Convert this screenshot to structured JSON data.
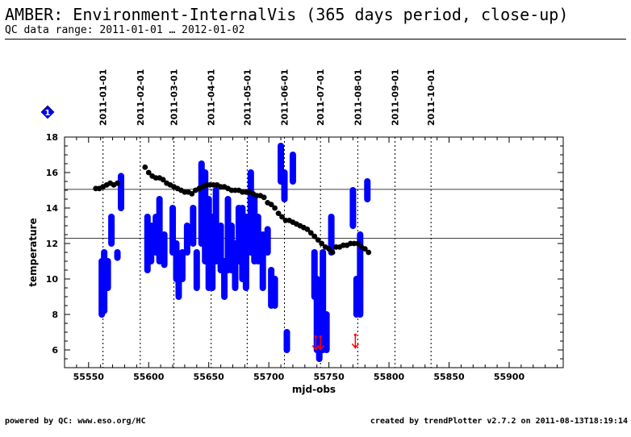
{
  "header": {
    "title": "AMBER: Environment-InternalVis (365 days period, close-up)",
    "subtitle": "QC data range: 2011-01-01 … 2012-01-02"
  },
  "footer": {
    "left": "powered by QC: www.eso.org/HC",
    "right": "created by trendPlotter v2.7.2 on 2011-08-13T18:19:14"
  },
  "marker_label": "1",
  "colors": {
    "series_temp": "#0000ff",
    "series_avg": "#000000",
    "outlier": "#ff0000",
    "marker": "#0000ff"
  },
  "chart_data": {
    "type": "scatter",
    "xlabel": "mjd-obs",
    "ylabel": "temperature",
    "xlim": [
      55530,
      55945
    ],
    "ylim": [
      5,
      18
    ],
    "x_ticks": [
      55550,
      55600,
      55650,
      55700,
      55750,
      55800,
      55850,
      55900
    ],
    "y_ticks": [
      6,
      8,
      10,
      12,
      14,
      16,
      18
    ],
    "date_markers": [
      {
        "label": "2011-01-01",
        "x": 55562
      },
      {
        "label": "2011-02-01",
        "x": 55593
      },
      {
        "label": "2011-03-01",
        "x": 55621
      },
      {
        "label": "2011-04-01",
        "x": 55652
      },
      {
        "label": "2011-05-01",
        "x": 55682
      },
      {
        "label": "2011-06-01",
        "x": 55713
      },
      {
        "label": "2011-07-01",
        "x": 55743
      },
      {
        "label": "2011-08-01",
        "x": 55774
      },
      {
        "label": "2011-09-01",
        "x": 55805
      },
      {
        "label": "2011-10-01",
        "x": 55835
      }
    ],
    "reference_lines": [
      15.05,
      12.3
    ],
    "series": [
      {
        "type": "range",
        "clusters": [
          {
            "x": 55561,
            "lo": 8.0,
            "hi": 11.0
          },
          {
            "x": 55563,
            "lo": 8.2,
            "hi": 11.5
          },
          {
            "x": 55566,
            "lo": 9.5,
            "hi": 11.0
          },
          {
            "x": 55569,
            "lo": 12.0,
            "hi": 13.5
          },
          {
            "x": 55574,
            "lo": 11.2,
            "hi": 11.5
          },
          {
            "x": 55577,
            "lo": 14.0,
            "hi": 15.8
          },
          {
            "x": 55599,
            "lo": 10.5,
            "hi": 13.5
          },
          {
            "x": 55602,
            "lo": 11.0,
            "hi": 13.0
          },
          {
            "x": 55606,
            "lo": 11.5,
            "hi": 13.5
          },
          {
            "x": 55609,
            "lo": 11.0,
            "hi": 14.5
          },
          {
            "x": 55613,
            "lo": 10.8,
            "hi": 12.5
          },
          {
            "x": 55620,
            "lo": 11.5,
            "hi": 14.0
          },
          {
            "x": 55623,
            "lo": 10.0,
            "hi": 12.0
          },
          {
            "x": 55625,
            "lo": 9.0,
            "hi": 11.0
          },
          {
            "x": 55628,
            "lo": 10.0,
            "hi": 11.5
          },
          {
            "x": 55632,
            "lo": 11.5,
            "hi": 13.0
          },
          {
            "x": 55637,
            "lo": 12.0,
            "hi": 14.0
          },
          {
            "x": 55640,
            "lo": 9.5,
            "hi": 11.5
          },
          {
            "x": 55644,
            "lo": 12.0,
            "hi": 16.5
          },
          {
            "x": 55647,
            "lo": 11.0,
            "hi": 16.0
          },
          {
            "x": 55650,
            "lo": 9.5,
            "hi": 14.5
          },
          {
            "x": 55653,
            "lo": 9.5,
            "hi": 13.5
          },
          {
            "x": 55656,
            "lo": 11.0,
            "hi": 15.0
          },
          {
            "x": 55660,
            "lo": 10.5,
            "hi": 13.0
          },
          {
            "x": 55663,
            "lo": 9.0,
            "hi": 11.0
          },
          {
            "x": 55666,
            "lo": 10.5,
            "hi": 14.5
          },
          {
            "x": 55669,
            "lo": 10.5,
            "hi": 13.0
          },
          {
            "x": 55672,
            "lo": 9.5,
            "hi": 12.0
          },
          {
            "x": 55675,
            "lo": 11.0,
            "hi": 14.0
          },
          {
            "x": 55678,
            "lo": 10.0,
            "hi": 14.0
          },
          {
            "x": 55681,
            "lo": 9.5,
            "hi": 13.5
          },
          {
            "x": 55685,
            "lo": 11.5,
            "hi": 16.0
          },
          {
            "x": 55688,
            "lo": 11.0,
            "hi": 14.5
          },
          {
            "x": 55691,
            "lo": 11.0,
            "hi": 13.5
          },
          {
            "x": 55695,
            "lo": 9.5,
            "hi": 12.5
          },
          {
            "x": 55699,
            "lo": 11.5,
            "hi": 12.8
          },
          {
            "x": 55702,
            "lo": 8.5,
            "hi": 10.5
          },
          {
            "x": 55705,
            "lo": 8.5,
            "hi": 10.0
          },
          {
            "x": 55710,
            "lo": 15.5,
            "hi": 17.5
          },
          {
            "x": 55713,
            "lo": 14.5,
            "hi": 16.0
          },
          {
            "x": 55715,
            "lo": 6.0,
            "hi": 7.0
          },
          {
            "x": 55720,
            "lo": 15.5,
            "hi": 17.0
          },
          {
            "x": 55738,
            "lo": 9.0,
            "hi": 11.5
          },
          {
            "x": 55740,
            "lo": 6.0,
            "hi": 10.0
          },
          {
            "x": 55742,
            "lo": 5.5,
            "hi": 9.0
          },
          {
            "x": 55745,
            "lo": 6.0,
            "hi": 11.5
          },
          {
            "x": 55748,
            "lo": 6.0,
            "hi": 8.0
          },
          {
            "x": 55752,
            "lo": 11.5,
            "hi": 13.5
          },
          {
            "x": 55770,
            "lo": 13.0,
            "hi": 15.0
          },
          {
            "x": 55773,
            "lo": 8.0,
            "hi": 10.0
          },
          {
            "x": 55776,
            "lo": 8.0,
            "hi": 12.5
          },
          {
            "x": 55782,
            "lo": 14.5,
            "hi": 15.5
          }
        ]
      },
      {
        "type": "line",
        "points": [
          [
            55556,
            15.1
          ],
          [
            55559,
            15.1
          ],
          [
            55562,
            15.2
          ],
          [
            55565,
            15.3
          ],
          [
            55568,
            15.4
          ],
          [
            55571,
            15.3
          ],
          [
            55574,
            15.4
          ],
          [
            55597,
            16.3
          ],
          [
            55600,
            16.0
          ],
          [
            55603,
            15.8
          ],
          [
            55606,
            15.7
          ],
          [
            55609,
            15.7
          ],
          [
            55612,
            15.6
          ],
          [
            55615,
            15.4
          ],
          [
            55618,
            15.3
          ],
          [
            55621,
            15.2
          ],
          [
            55624,
            15.1
          ],
          [
            55627,
            15.0
          ],
          [
            55630,
            14.9
          ],
          [
            55633,
            14.9
          ],
          [
            55636,
            14.8
          ],
          [
            55639,
            15.0
          ],
          [
            55642,
            15.1
          ],
          [
            55645,
            15.2
          ],
          [
            55648,
            15.3
          ],
          [
            55651,
            15.3
          ],
          [
            55654,
            15.3
          ],
          [
            55657,
            15.3
          ],
          [
            55660,
            15.2
          ],
          [
            55663,
            15.2
          ],
          [
            55666,
            15.1
          ],
          [
            55669,
            15.0
          ],
          [
            55672,
            15.0
          ],
          [
            55675,
            15.0
          ],
          [
            55678,
            14.9
          ],
          [
            55681,
            14.9
          ],
          [
            55684,
            14.9
          ],
          [
            55687,
            14.8
          ],
          [
            55690,
            14.7
          ],
          [
            55693,
            14.7
          ],
          [
            55696,
            14.6
          ],
          [
            55699,
            14.3
          ],
          [
            55702,
            14.2
          ],
          [
            55705,
            14.0
          ],
          [
            55708,
            13.7
          ],
          [
            55711,
            13.5
          ],
          [
            55714,
            13.3
          ],
          [
            55717,
            13.3
          ],
          [
            55720,
            13.2
          ],
          [
            55723,
            13.1
          ],
          [
            55726,
            13.0
          ],
          [
            55729,
            12.9
          ],
          [
            55732,
            12.8
          ],
          [
            55735,
            12.6
          ],
          [
            55738,
            12.4
          ],
          [
            55741,
            12.2
          ],
          [
            55744,
            12.0
          ],
          [
            55747,
            11.8
          ],
          [
            55750,
            11.7
          ],
          [
            55753,
            11.5
          ],
          [
            55756,
            11.8
          ],
          [
            55759,
            11.8
          ],
          [
            55762,
            11.9
          ],
          [
            55765,
            11.9
          ],
          [
            55768,
            12.0
          ],
          [
            55771,
            12.0
          ],
          [
            55774,
            12.0
          ],
          [
            55777,
            11.8
          ],
          [
            55780,
            11.7
          ],
          [
            55783,
            11.5
          ]
        ]
      }
    ],
    "outliers": [
      {
        "x": 55739,
        "y": 6.2
      },
      {
        "x": 55743,
        "y": 6.2
      },
      {
        "x": 55772,
        "y": 6.3
      }
    ]
  }
}
